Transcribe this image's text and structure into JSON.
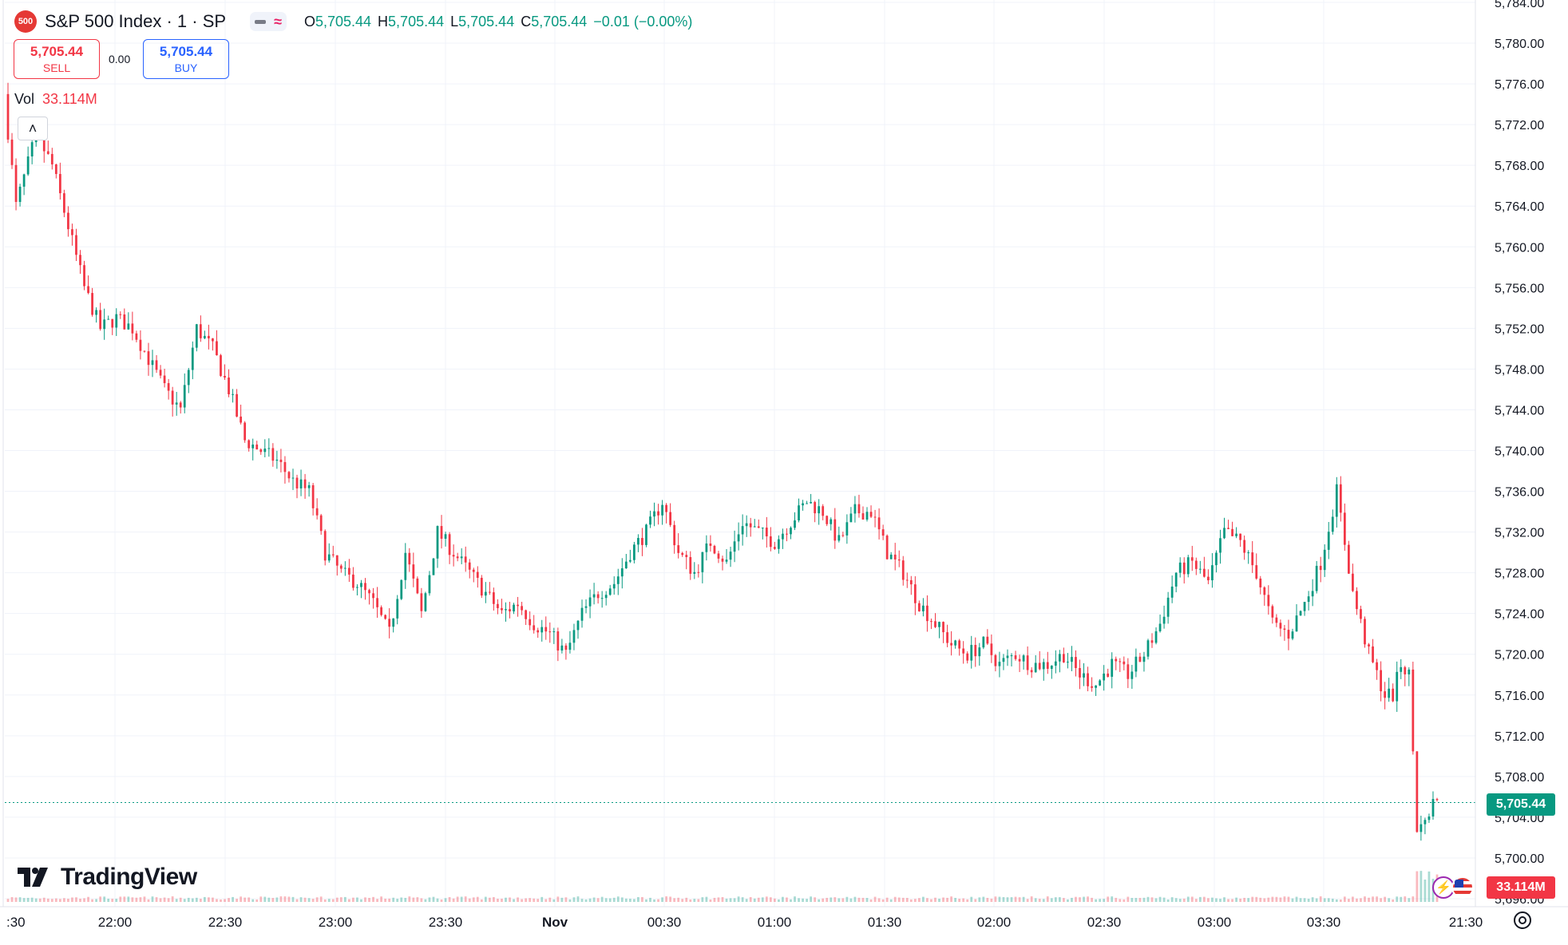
{
  "header": {
    "logo_text": "500",
    "title": "S&P 500 Index · 1 · SP",
    "ohlc": [
      {
        "key": "O",
        "value": "5,705.44"
      },
      {
        "key": "H",
        "value": "5,705.44"
      },
      {
        "key": "L",
        "value": "5,705.44"
      },
      {
        "key": "C",
        "value": "5,705.44"
      }
    ],
    "change": "−0.01 (−0.00%)"
  },
  "trade": {
    "sell_price": "5,705.44",
    "sell_label": "SELL",
    "spread": "0.00",
    "buy_price": "5,705.44",
    "buy_label": "BUY"
  },
  "volume": {
    "label": "Vol",
    "value": "33.114M"
  },
  "brand": "TradingView",
  "last_price_tag": "5,705.44",
  "volume_tag": "33.114M",
  "colors": {
    "up": "#089981",
    "down": "#f23645",
    "grid": "#f0f3fa",
    "axis_text": "#131722"
  },
  "icons": {
    "collapse": "chevron-up-icon",
    "settings": "settings-icon",
    "bolt": "bolt-icon",
    "flag": "us-flag-icon"
  },
  "chart_data": {
    "type": "candlestick",
    "title": "S&P 500 Index · 1 · SP",
    "interval": "1 minute",
    "ylim": [
      5696,
      5784
    ],
    "y_ticks": [
      "5,784.00",
      "5,780.00",
      "5,776.00",
      "5,772.00",
      "5,768.00",
      "5,764.00",
      "5,760.00",
      "5,756.00",
      "5,752.00",
      "5,748.00",
      "5,744.00",
      "5,740.00",
      "5,736.00",
      "5,732.00",
      "5,728.00",
      "5,724.00",
      "5,720.00",
      "5,716.00",
      "5,712.00",
      "5,708.00",
      "5,704.00",
      "5,700.00",
      "5,696.00"
    ],
    "x_ticks": [
      ":30",
      "22:00",
      "22:30",
      "23:00",
      "23:30",
      "Nov",
      "00:30",
      "01:00",
      "01:30",
      "02:00",
      "02:30",
      "03:00",
      "03:30",
      "21:30"
    ],
    "last_price": 5705.44,
    "price_path": [
      [
        0,
        5775
      ],
      [
        3,
        5764
      ],
      [
        8,
        5771
      ],
      [
        12,
        5768
      ],
      [
        16,
        5762
      ],
      [
        20,
        5756
      ],
      [
        24,
        5752
      ],
      [
        28,
        5753
      ],
      [
        32,
        5752
      ],
      [
        36,
        5749
      ],
      [
        40,
        5746
      ],
      [
        44,
        5744
      ],
      [
        48,
        5752
      ],
      [
        52,
        5750
      ],
      [
        56,
        5746
      ],
      [
        60,
        5741
      ],
      [
        64,
        5740
      ],
      [
        68,
        5739
      ],
      [
        72,
        5737
      ],
      [
        76,
        5736
      ],
      [
        80,
        5730
      ],
      [
        84,
        5728
      ],
      [
        88,
        5727
      ],
      [
        92,
        5725
      ],
      [
        96,
        5722
      ],
      [
        100,
        5730
      ],
      [
        104,
        5724
      ],
      [
        108,
        5732
      ],
      [
        112,
        5730
      ],
      [
        116,
        5728
      ],
      [
        120,
        5726
      ],
      [
        124,
        5724
      ],
      [
        128,
        5725
      ],
      [
        132,
        5723
      ],
      [
        136,
        5722
      ],
      [
        140,
        5720
      ],
      [
        144,
        5724
      ],
      [
        148,
        5726
      ],
      [
        152,
        5727
      ],
      [
        156,
        5730
      ],
      [
        160,
        5732
      ],
      [
        164,
        5735
      ],
      [
        168,
        5730
      ],
      [
        172,
        5728
      ],
      [
        176,
        5731
      ],
      [
        180,
        5729
      ],
      [
        184,
        5733
      ],
      [
        188,
        5732
      ],
      [
        192,
        5731
      ],
      [
        196,
        5733
      ],
      [
        200,
        5735
      ],
      [
        204,
        5734
      ],
      [
        208,
        5731
      ],
      [
        212,
        5734
      ],
      [
        216,
        5734
      ],
      [
        220,
        5730
      ],
      [
        224,
        5728
      ],
      [
        228,
        5725
      ],
      [
        232,
        5723
      ],
      [
        236,
        5721
      ],
      [
        240,
        5720
      ],
      [
        244,
        5721
      ],
      [
        248,
        5719
      ],
      [
        252,
        5720
      ],
      [
        256,
        5719
      ],
      [
        260,
        5719
      ],
      [
        264,
        5720
      ],
      [
        268,
        5718
      ],
      [
        272,
        5717
      ],
      [
        276,
        5719
      ],
      [
        280,
        5718
      ],
      [
        284,
        5720
      ],
      [
        288,
        5723
      ],
      [
        292,
        5728
      ],
      [
        296,
        5729
      ],
      [
        300,
        5727
      ],
      [
        304,
        5732
      ],
      [
        308,
        5731
      ],
      [
        312,
        5728
      ],
      [
        316,
        5723
      ],
      [
        320,
        5722
      ],
      [
        324,
        5725
      ],
      [
        328,
        5729
      ],
      [
        332,
        5736
      ],
      [
        336,
        5726
      ],
      [
        340,
        5720
      ],
      [
        344,
        5716
      ],
      [
        346,
        5716
      ],
      [
        348,
        5719
      ],
      [
        350,
        5718
      ],
      [
        352,
        5703
      ],
      [
        356,
        5705.44
      ]
    ],
    "volume_max_label": "33.114M"
  }
}
